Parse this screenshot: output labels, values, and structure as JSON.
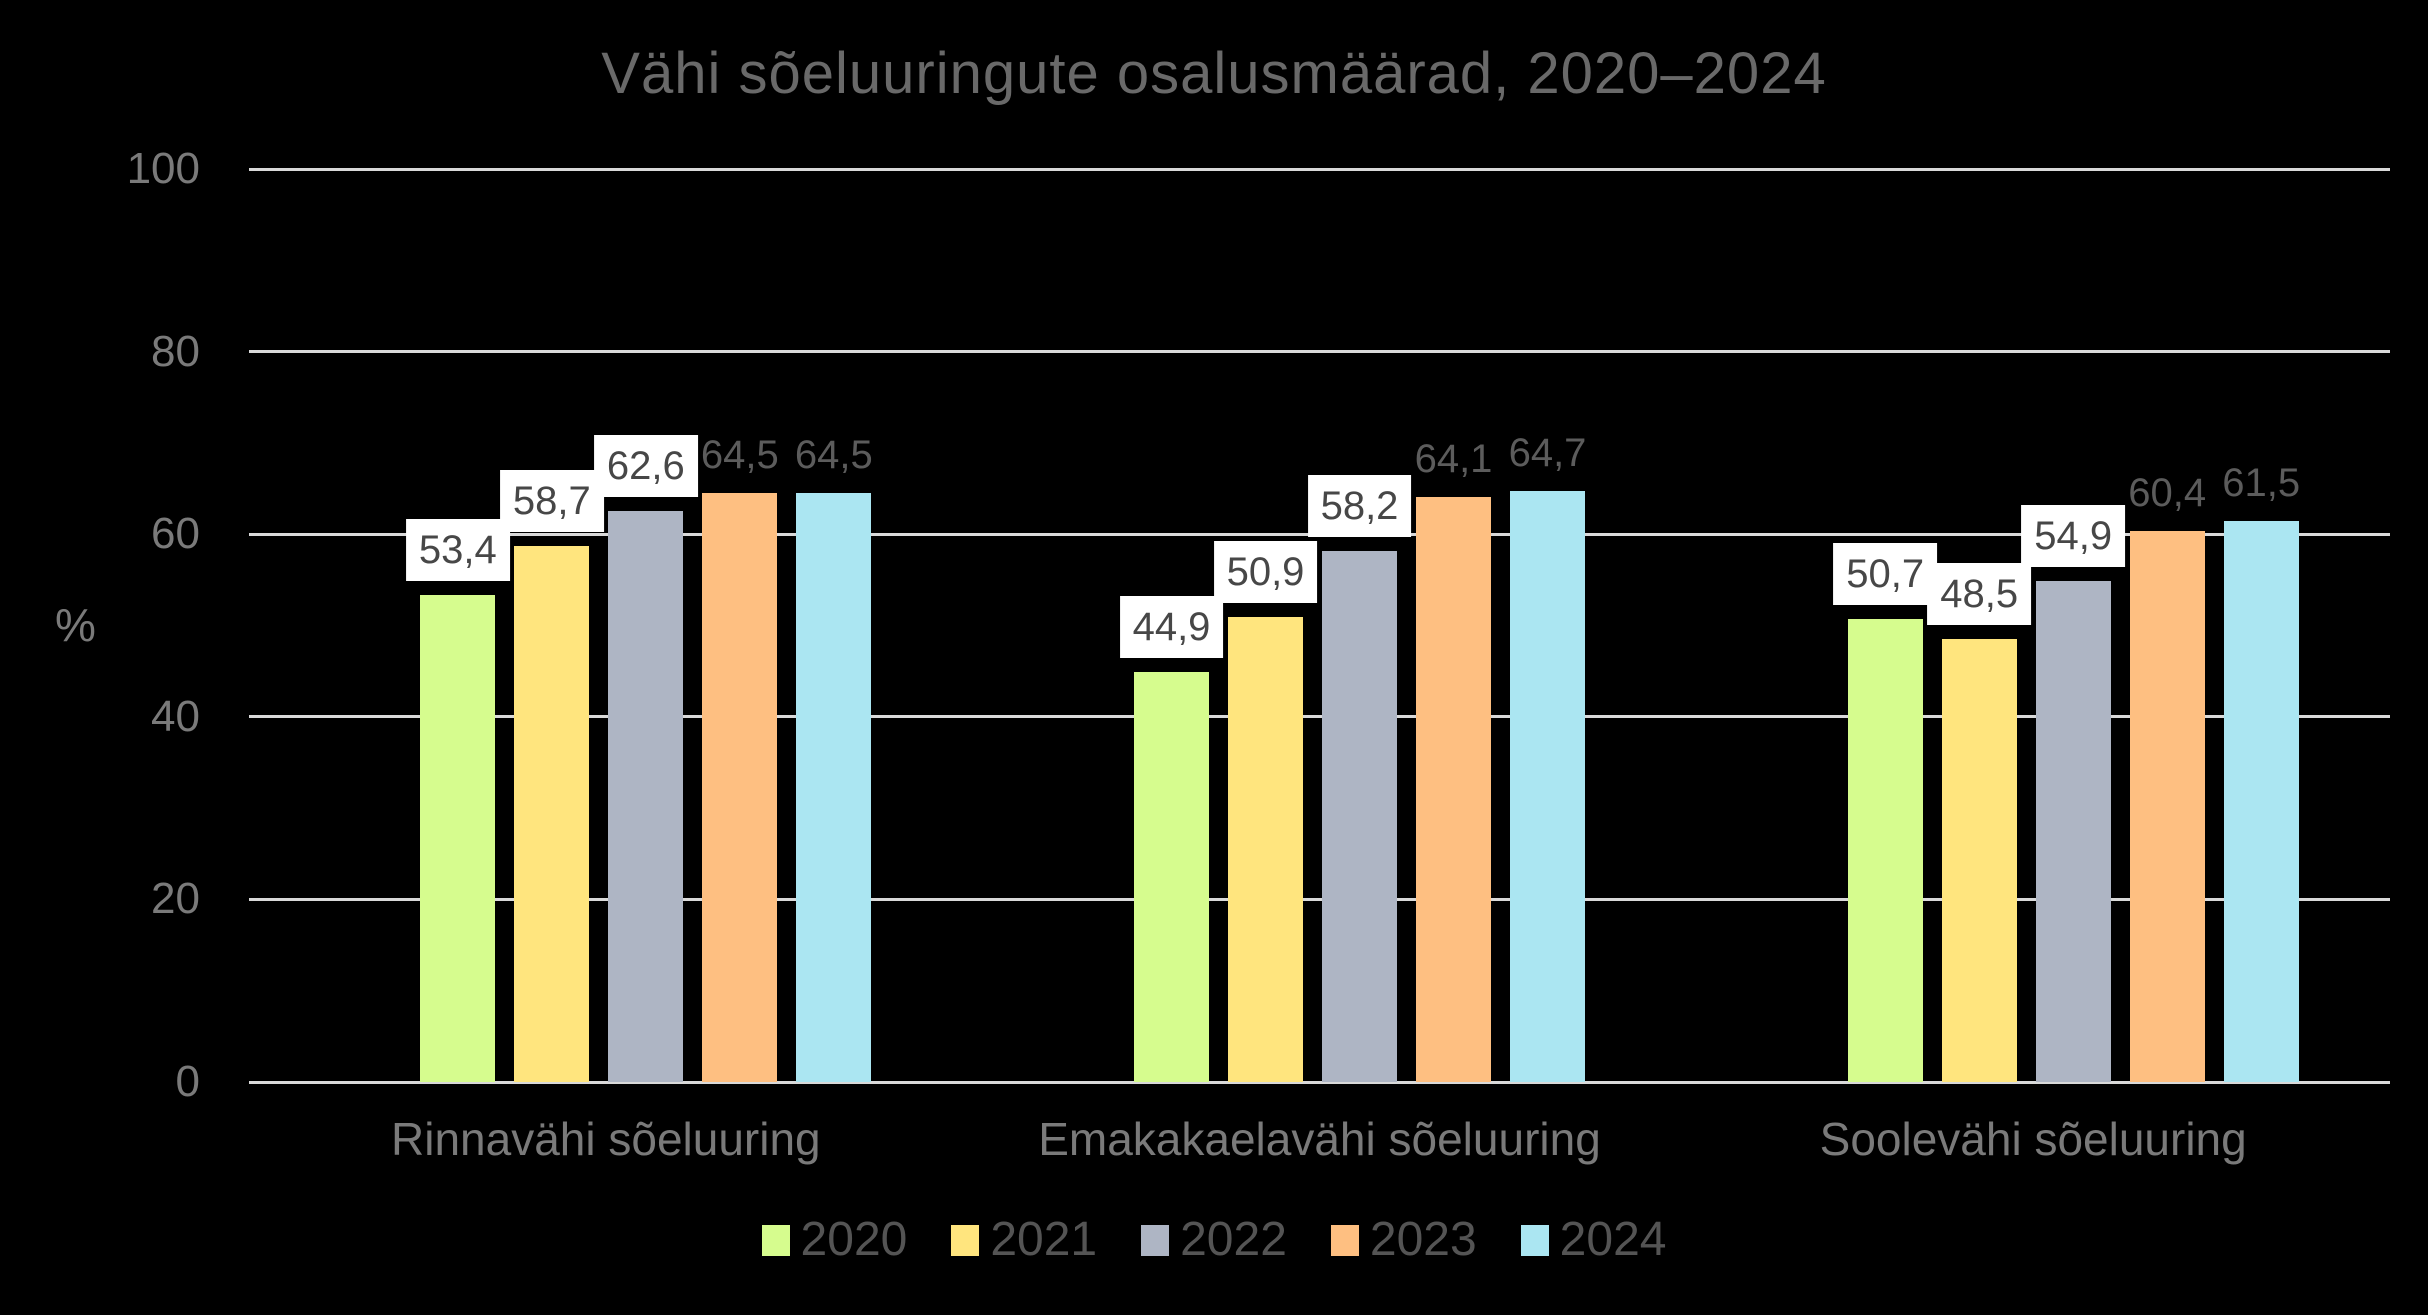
{
  "chart_data": {
    "type": "bar",
    "title": "Vähi sõeluuringute osalusmäärad, 2020–2024",
    "ylabel": "%",
    "ylim": [
      0,
      100
    ],
    "yticks": [
      0,
      20,
      40,
      60,
      80,
      100
    ],
    "grid": true,
    "legend_position": "bottom",
    "background_color": "#000000",
    "gridline_color": "#d9d9d9",
    "categories": [
      "Rinnavähi sõeluuring",
      "Emakakaelavähi sõeluuring",
      "Soolevähi sõeluuring"
    ],
    "series": [
      {
        "name": "2020",
        "color": "#d6fc8e",
        "values": [
          53.4,
          44.9,
          50.7
        ],
        "labels": [
          "53,4",
          "44,9",
          "50,7"
        ],
        "label_style": "boxed"
      },
      {
        "name": "2021",
        "color": "#ffe57e",
        "values": [
          58.7,
          50.9,
          48.5
        ],
        "labels": [
          "58,7",
          "50,9",
          "48,5"
        ],
        "label_style": "boxed"
      },
      {
        "name": "2022",
        "color": "#aeb5c4",
        "values": [
          62.6,
          58.2,
          54.9
        ],
        "labels": [
          "62,6",
          "58,2",
          "54,9"
        ],
        "label_style": "boxed"
      },
      {
        "name": "2023",
        "color": "#febf81",
        "values": [
          64.5,
          64.1,
          60.4
        ],
        "labels": [
          "64,5",
          "64,1",
          "60,4"
        ],
        "label_style": "plain"
      },
      {
        "name": "2024",
        "color": "#abe6f2",
        "values": [
          64.5,
          64.7,
          61.5
        ],
        "labels": [
          "64,5",
          "64,7",
          "61,5"
        ],
        "label_style": "plain"
      }
    ]
  }
}
